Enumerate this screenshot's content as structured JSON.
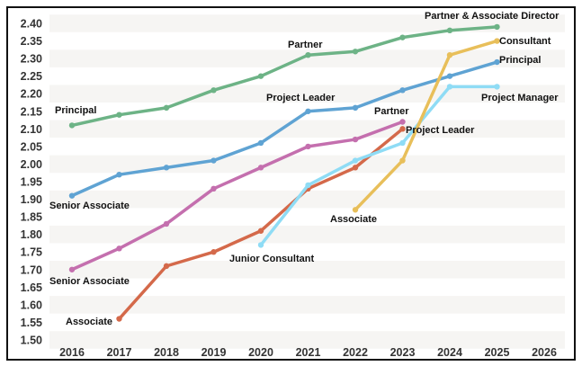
{
  "chart_data": {
    "type": "line",
    "title": "",
    "xlabel": "",
    "ylabel": "",
    "ylim": [
      1.5,
      2.4
    ],
    "xlim": [
      2016,
      2026
    ],
    "grid": "alternating horizontal bands",
    "y_ticks": [
      "1.50",
      "1.55",
      "1.60",
      "1.65",
      "1.70",
      "1.75",
      "1.80",
      "1.85",
      "1.90",
      "1.95",
      "2.00",
      "2.05",
      "2.10",
      "2.15",
      "2.20",
      "2.25",
      "2.30",
      "2.35",
      "2.40"
    ],
    "x_ticks": [
      "2016",
      "2017",
      "2018",
      "2019",
      "2020",
      "2021",
      "2022",
      "2023",
      "2024",
      "2025",
      "2026"
    ],
    "series": [
      {
        "color": "#6db386",
        "x": [
          2016,
          2017,
          2018,
          2019,
          2020,
          2021,
          2022,
          2023,
          2024,
          2025
        ],
        "values": [
          2.11,
          2.14,
          2.16,
          2.21,
          2.25,
          2.31,
          2.32,
          2.36,
          2.38,
          2.39
        ]
      },
      {
        "color": "#5fa3d3",
        "x": [
          2016,
          2017,
          2018,
          2019,
          2020,
          2021,
          2022,
          2023,
          2024,
          2025
        ],
        "values": [
          1.91,
          1.97,
          1.99,
          2.01,
          2.06,
          2.15,
          2.16,
          2.21,
          2.25,
          2.29
        ]
      },
      {
        "color": "#c46fae",
        "x": [
          2016,
          2017,
          2018,
          2019,
          2020,
          2021,
          2022,
          2023
        ],
        "values": [
          1.7,
          1.76,
          1.83,
          1.93,
          1.99,
          2.05,
          2.07,
          2.12
        ]
      },
      {
        "color": "#d4694a",
        "x": [
          2017,
          2018,
          2019,
          2020,
          2021,
          2022,
          2023
        ],
        "values": [
          1.56,
          1.71,
          1.75,
          1.81,
          1.93,
          1.99,
          2.1
        ]
      },
      {
        "color": "#8fdcf5",
        "x": [
          2020,
          2021,
          2022,
          2023,
          2024,
          2025
        ],
        "values": [
          1.77,
          1.94,
          2.01,
          2.06,
          2.22,
          2.22
        ]
      },
      {
        "color": "#e8bf5a",
        "x": [
          2022,
          2023,
          2024,
          2025
        ],
        "values": [
          1.87,
          2.01,
          2.31,
          2.35
        ]
      }
    ],
    "annotations": [
      "Principal",
      "Partner",
      "Partner & Associate Director",
      "Consultant",
      "Principal",
      "Project Manager",
      "Project Leader",
      "Partner",
      "Project Leader",
      "Senior Associate",
      "Associate",
      "Junior Consultant",
      "Senior Associate",
      "Associate"
    ]
  }
}
